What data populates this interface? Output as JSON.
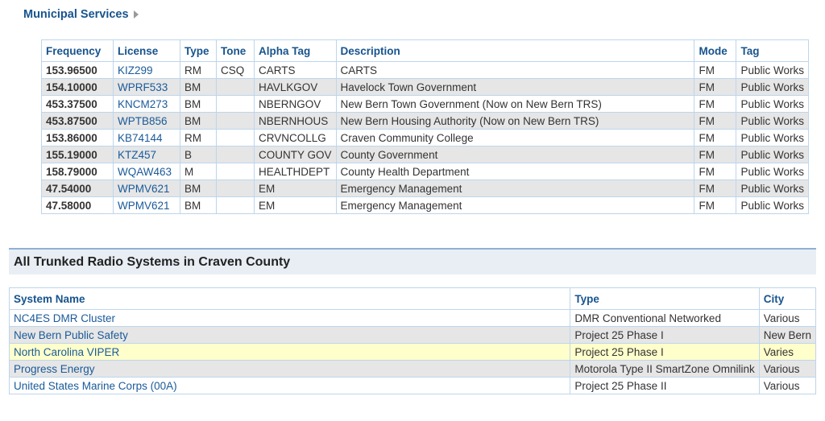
{
  "municipal": {
    "title": "Municipal Services",
    "headers": [
      "Frequency",
      "License",
      "Type",
      "Tone",
      "Alpha Tag",
      "Description",
      "Mode",
      "Tag"
    ],
    "rows": [
      {
        "freq": "153.96500",
        "license": "KIZ299",
        "type": "RM",
        "tone": "CSQ",
        "alpha": "CARTS",
        "desc": "CARTS",
        "mode": "FM",
        "tag": "Public Works"
      },
      {
        "freq": "154.10000",
        "license": "WPRF533",
        "type": "BM",
        "tone": "",
        "alpha": "HAVLKGOV",
        "desc": "Havelock Town Government",
        "mode": "FM",
        "tag": "Public Works"
      },
      {
        "freq": "453.37500",
        "license": "KNCM273",
        "type": "BM",
        "tone": "",
        "alpha": "NBERNGOV",
        "desc": "New Bern Town Government (Now on New Bern TRS)",
        "mode": "FM",
        "tag": "Public Works"
      },
      {
        "freq": "453.87500",
        "license": "WPTB856",
        "type": "BM",
        "tone": "",
        "alpha": "NBERNHOUS",
        "desc": "New Bern Housing Authority (Now on New Bern TRS)",
        "mode": "FM",
        "tag": "Public Works"
      },
      {
        "freq": "153.86000",
        "license": "KB74144",
        "type": "RM",
        "tone": "",
        "alpha": "CRVNCOLLG",
        "desc": "Craven Community College",
        "mode": "FM",
        "tag": "Public Works"
      },
      {
        "freq": "155.19000",
        "license": "KTZ457",
        "type": "B",
        "tone": "",
        "alpha": "COUNTY GOV",
        "desc": "County Government",
        "mode": "FM",
        "tag": "Public Works"
      },
      {
        "freq": "158.79000",
        "license": "WQAW463",
        "type": "M",
        "tone": "",
        "alpha": "HEALTHDEPT",
        "desc": "County Health Department",
        "mode": "FM",
        "tag": "Public Works"
      },
      {
        "freq": "47.54000",
        "license": "WPMV621",
        "type": "BM",
        "tone": "",
        "alpha": "EM",
        "desc": "Emergency Management",
        "mode": "FM",
        "tag": "Public Works"
      },
      {
        "freq": "47.58000",
        "license": "WPMV621",
        "type": "BM",
        "tone": "",
        "alpha": "EM",
        "desc": "Emergency Management",
        "mode": "FM",
        "tag": "Public Works"
      }
    ]
  },
  "trunked": {
    "title": "All Trunked Radio Systems in Craven County",
    "headers": [
      "System Name",
      "Type",
      "City"
    ],
    "rows": [
      {
        "name": "NC4ES DMR Cluster",
        "type": "DMR Conventional Networked",
        "city": "Various"
      },
      {
        "name": "New Bern Public Safety",
        "type": "Project 25 Phase I",
        "city": "New Bern"
      },
      {
        "name": "North Carolina VIPER",
        "type": "Project 25 Phase I",
        "city": "Varies"
      },
      {
        "name": "Progress Energy",
        "type": "Motorola Type II SmartZone Omnilink",
        "city": "Various"
      },
      {
        "name": "United States Marine Corps (00A)",
        "type": "Project 25 Phase II",
        "city": "Various"
      }
    ]
  },
  "colors": {
    "link": "#1a5a9a",
    "header_text": "#17548e",
    "alt_row": "#e6e6e6",
    "highlight_row": "#ffffcc",
    "border": "#bcd6ec"
  }
}
